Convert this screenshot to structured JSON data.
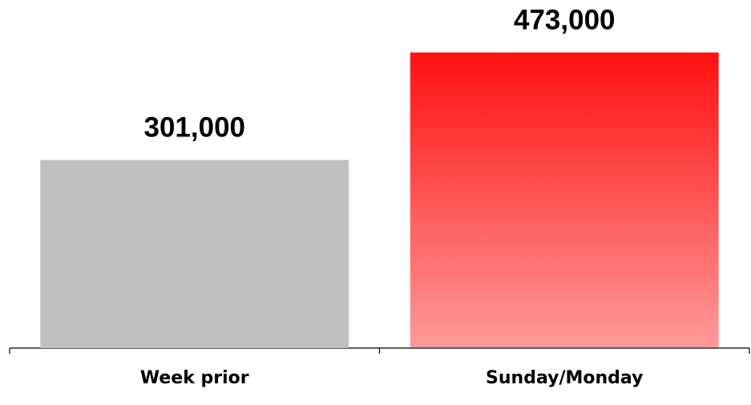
{
  "chart_data": {
    "type": "bar",
    "categories": [
      "Week prior",
      "Sunday/Monday"
    ],
    "values": [
      301000,
      473000
    ],
    "value_labels": [
      "301,000",
      "473,000"
    ],
    "colors": [
      "#c0c0c0",
      "#ff1010"
    ],
    "ylim": [
      0,
      557000
    ]
  }
}
